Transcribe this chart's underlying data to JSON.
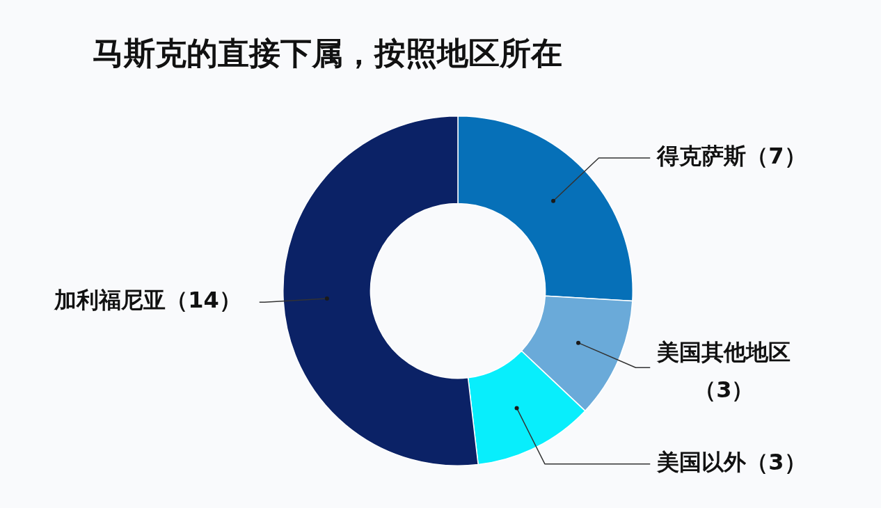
{
  "chart_data": {
    "type": "donut",
    "title": "马斯克的直接下属，按照地区所在",
    "categories": [
      "得克萨斯",
      "美国其他地区",
      "美国以外",
      "加利福尼亚"
    ],
    "values": [
      7,
      3,
      3,
      14
    ],
    "value_labels": [
      "（7）",
      "（3）",
      "（3）",
      "（14）"
    ],
    "colors": [
      "#0670b8",
      "#6aaad9",
      "#08eefc",
      "#0b2266"
    ]
  }
}
